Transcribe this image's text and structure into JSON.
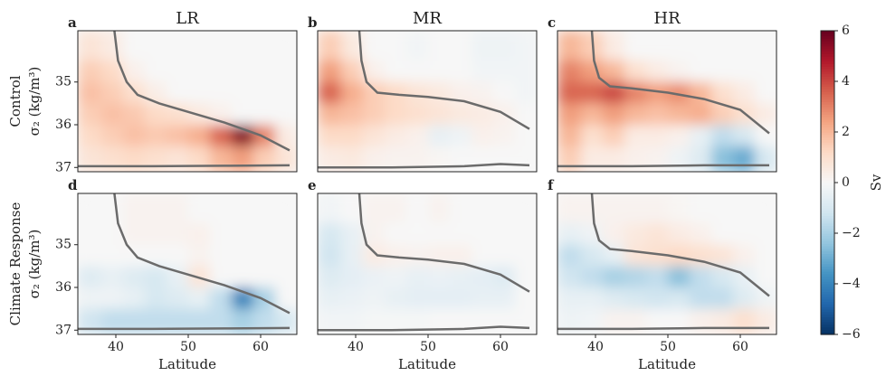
{
  "chart_data": [
    {
      "type": "heatmap",
      "label": "a",
      "title": "LR",
      "ylabel": [
        "Control",
        "σ₂ (kg/m³)"
      ],
      "xlim": [
        34.75,
        65
      ],
      "ylim": [
        33.8,
        37.1
      ],
      "y_inverted": true,
      "yticks": [
        35,
        36,
        37
      ],
      "x_edges": [
        34.75,
        38,
        41,
        44,
        47,
        50,
        53,
        56,
        59,
        62,
        65
      ],
      "y_edges": [
        33.8,
        34.5,
        35,
        35.5,
        36,
        36.5,
        37.1
      ],
      "values": [
        [
          0.8,
          0.5,
          0,
          0,
          0,
          0,
          0,
          0,
          0,
          0
        ],
        [
          1.5,
          1.2,
          0.3,
          0,
          0,
          0,
          0,
          0,
          0,
          0
        ],
        [
          1.8,
          1.5,
          1.0,
          0.4,
          0,
          0,
          0,
          0,
          0,
          0
        ],
        [
          1.5,
          1.8,
          1.6,
          1.2,
          1.0,
          0.6,
          0.3,
          0,
          0,
          0
        ],
        [
          1.2,
          1.5,
          1.8,
          1.6,
          1.8,
          2.2,
          3.5,
          5.5,
          3.0,
          0.5
        ],
        [
          0.8,
          1.0,
          1.2,
          1.0,
          0.8,
          1.2,
          2.0,
          2.5,
          1.5,
          0.8
        ]
      ],
      "lines": [
        {
          "x": [
            39.8,
            40.3,
            41.5,
            43,
            46,
            50,
            55,
            60,
            64
          ],
          "y": [
            33.8,
            34.5,
            35.0,
            35.3,
            35.5,
            35.7,
            35.95,
            36.25,
            36.6
          ]
        },
        {
          "x": [
            34.75,
            45,
            55,
            64
          ],
          "y": [
            36.97,
            36.97,
            36.96,
            36.95
          ]
        }
      ],
      "line_color": "#6b6b6b"
    },
    {
      "type": "heatmap",
      "label": "b",
      "title": "MR",
      "xlim": [
        34.75,
        65
      ],
      "ylim": [
        33.8,
        37.1
      ],
      "y_inverted": true,
      "x_edges": [
        34.75,
        38,
        41,
        44,
        47,
        50,
        53,
        56,
        59,
        62,
        65
      ],
      "y_edges": [
        33.8,
        34.5,
        35,
        35.5,
        36,
        36.5,
        37.1
      ],
      "values": [
        [
          1.5,
          0.6,
          0,
          0,
          -0.2,
          0,
          0,
          -0.3,
          -0.3,
          -0.2
        ],
        [
          2.5,
          1.5,
          0.3,
          0,
          0,
          0,
          0,
          -0.2,
          -0.2,
          -0.2
        ],
        [
          3.5,
          2.2,
          1.5,
          1.2,
          0.8,
          0.6,
          0.3,
          0.2,
          0,
          -0.2
        ],
        [
          2.0,
          1.8,
          1.5,
          1.2,
          1.0,
          0.8,
          0.6,
          0.5,
          0.3,
          0
        ],
        [
          1.2,
          1.2,
          0.8,
          0.5,
          0.3,
          -0.5,
          -0.3,
          0.3,
          0.2,
          0
        ],
        [
          0.5,
          0.6,
          0.3,
          0.2,
          0.2,
          0.1,
          0,
          0,
          0,
          0
        ]
      ],
      "lines": [
        {
          "x": [
            40.5,
            40.8,
            41.5,
            43,
            46,
            50,
            55,
            60,
            64
          ],
          "y": [
            33.8,
            34.5,
            35.0,
            35.25,
            35.3,
            35.35,
            35.45,
            35.7,
            36.1
          ]
        },
        {
          "x": [
            34.75,
            45,
            55,
            60,
            64
          ],
          "y": [
            37.0,
            37.0,
            36.97,
            36.92,
            36.95
          ]
        }
      ],
      "line_color": "#6b6b6b"
    },
    {
      "type": "heatmap",
      "label": "c",
      "title": "HR",
      "xlim": [
        34.75,
        65
      ],
      "ylim": [
        33.8,
        37.1
      ],
      "y_inverted": true,
      "x_edges": [
        34.75,
        38,
        41,
        44,
        47,
        50,
        53,
        56,
        59,
        62,
        65
      ],
      "y_edges": [
        33.8,
        34.5,
        35,
        35.5,
        36,
        36.5,
        37.1
      ],
      "values": [
        [
          2.0,
          1.5,
          0.5,
          0,
          0,
          0,
          0,
          0,
          0,
          0
        ],
        [
          3.0,
          2.5,
          2.0,
          1.0,
          0.5,
          0.2,
          0,
          0,
          0,
          0
        ],
        [
          3.5,
          3.5,
          4.0,
          3.0,
          2.5,
          2.8,
          2.0,
          1.0,
          0.5,
          0
        ],
        [
          2.5,
          2.0,
          2.5,
          2.0,
          1.8,
          2.0,
          2.2,
          1.5,
          1.0,
          0.5
        ],
        [
          2.0,
          1.0,
          1.5,
          0.5,
          0.5,
          0.3,
          -0.5,
          -1.5,
          -1.0,
          0
        ],
        [
          1.5,
          0.5,
          0.5,
          0.3,
          0.2,
          -0.3,
          -0.8,
          -2.5,
          -3.0,
          -1.0
        ]
      ],
      "lines": [
        {
          "x": [
            39.5,
            39.8,
            40.5,
            42,
            45,
            50,
            55,
            60,
            64
          ],
          "y": [
            33.8,
            34.5,
            34.9,
            35.1,
            35.15,
            35.25,
            35.4,
            35.65,
            36.2
          ]
        },
        {
          "x": [
            34.75,
            45,
            55,
            64
          ],
          "y": [
            36.97,
            36.97,
            36.95,
            36.95
          ]
        }
      ],
      "line_color": "#6b6b6b"
    },
    {
      "type": "heatmap",
      "label": "d",
      "ylabel": [
        "Climate Response",
        "σ₂ (kg/m³)"
      ],
      "xlabel": "Latitude",
      "xlim": [
        34.75,
        65
      ],
      "ylim": [
        33.8,
        37.1
      ],
      "y_inverted": true,
      "xticks": [
        40,
        50,
        60
      ],
      "yticks": [
        35,
        36,
        37
      ],
      "x_edges": [
        34.75,
        38,
        41,
        44,
        47,
        50,
        53,
        56,
        59,
        62,
        65
      ],
      "y_edges": [
        33.8,
        34.5,
        35,
        35.5,
        36,
        36.5,
        37.1
      ],
      "values": [
        [
          0,
          0,
          0.2,
          0.2,
          0.2,
          0,
          0,
          0,
          0,
          0
        ],
        [
          0,
          0,
          0.2,
          0.2,
          0.2,
          0.3,
          0,
          0,
          0,
          0
        ],
        [
          0,
          0,
          0,
          0,
          0,
          0.2,
          0,
          0,
          0,
          0
        ],
        [
          -0.8,
          -0.5,
          -0.8,
          -1.0,
          -0.5,
          0.8,
          0,
          0,
          0,
          0
        ],
        [
          -0.3,
          -0.3,
          -0.5,
          -1.0,
          -0.8,
          -0.5,
          -1.5,
          -4.0,
          -2.0,
          0
        ],
        [
          -1.2,
          -1.5,
          -1.5,
          -1.5,
          -1.5,
          -1.5,
          -1.5,
          -2.0,
          -1.5,
          -1.0
        ]
      ],
      "lines": [
        {
          "x": [
            39.8,
            40.3,
            41.5,
            43,
            46,
            50,
            55,
            60,
            64
          ],
          "y": [
            33.8,
            34.5,
            35.0,
            35.3,
            35.5,
            35.7,
            35.95,
            36.25,
            36.6
          ]
        },
        {
          "x": [
            34.75,
            45,
            55,
            64
          ],
          "y": [
            36.97,
            36.97,
            36.96,
            36.95
          ]
        }
      ],
      "line_color": "#6b6b6b"
    },
    {
      "type": "heatmap",
      "label": "e",
      "xlabel": "Latitude",
      "xlim": [
        34.75,
        65
      ],
      "ylim": [
        33.8,
        37.1
      ],
      "y_inverted": true,
      "xticks": [
        40,
        50,
        60
      ],
      "x_edges": [
        34.75,
        38,
        41,
        44,
        47,
        50,
        53,
        56,
        59,
        62,
        65
      ],
      "y_edges": [
        33.8,
        34.5,
        35,
        35.5,
        36,
        36.5,
        37.1
      ],
      "values": [
        [
          -0.2,
          0,
          0.2,
          0.2,
          0,
          0.2,
          0,
          0,
          0,
          0
        ],
        [
          -1.0,
          -0.5,
          0.2,
          0,
          0,
          0,
          0,
          0,
          0,
          0
        ],
        [
          -1.2,
          -0.5,
          0.5,
          0.3,
          0.2,
          0.3,
          0.3,
          0,
          0,
          0
        ],
        [
          -0.8,
          -0.6,
          -0.4,
          -0.3,
          -0.5,
          -0.4,
          -0.5,
          -0.6,
          -0.8,
          0
        ],
        [
          -0.5,
          -0.4,
          -0.3,
          -0.5,
          -0.6,
          -0.6,
          -0.6,
          -0.5,
          -0.5,
          0
        ],
        [
          -0.2,
          -0.2,
          -0.1,
          -0.1,
          -0.1,
          0,
          0,
          0,
          0,
          0
        ]
      ],
      "lines": [
        {
          "x": [
            40.5,
            40.8,
            41.5,
            43,
            46,
            50,
            55,
            60,
            64
          ],
          "y": [
            33.8,
            34.5,
            35.0,
            35.25,
            35.3,
            35.35,
            35.45,
            35.7,
            36.1
          ]
        },
        {
          "x": [
            34.75,
            45,
            55,
            60,
            64
          ],
          "y": [
            37.0,
            37.0,
            36.97,
            36.92,
            36.95
          ]
        }
      ],
      "line_color": "#6b6b6b"
    },
    {
      "type": "heatmap",
      "label": "f",
      "xlabel": "Latitude",
      "xlim": [
        34.75,
        65
      ],
      "ylim": [
        33.8,
        37.1
      ],
      "y_inverted": true,
      "xticks": [
        40,
        50,
        60
      ],
      "x_edges": [
        34.75,
        38,
        41,
        44,
        47,
        50,
        53,
        56,
        59,
        62,
        65
      ],
      "y_edges": [
        33.8,
        34.5,
        35,
        35.5,
        36,
        36.5,
        37.1
      ],
      "values": [
        [
          0.2,
          0.2,
          0.2,
          0.2,
          0.2,
          0.1,
          0,
          0,
          0,
          0
        ],
        [
          -0.5,
          -0.3,
          0.3,
          0.6,
          0.8,
          0.5,
          0.3,
          0,
          0,
          0
        ],
        [
          -1.5,
          -1.0,
          -0.5,
          0.8,
          1.0,
          1.2,
          1.0,
          0.8,
          0.3,
          0
        ],
        [
          -1.2,
          -1.5,
          -2.0,
          -1.8,
          -1.5,
          -2.5,
          -1.5,
          -1.0,
          -0.5,
          0
        ],
        [
          -0.5,
          -0.5,
          -0.8,
          -1.0,
          -1.2,
          -1.0,
          -1.5,
          -1.5,
          -0.8,
          -0.3
        ],
        [
          -0.3,
          -0.2,
          0.2,
          0.2,
          0,
          0,
          0.3,
          0.5,
          1.0,
          0.5
        ]
      ],
      "lines": [
        {
          "x": [
            39.5,
            39.8,
            40.5,
            42,
            45,
            50,
            55,
            60,
            64
          ],
          "y": [
            33.8,
            34.5,
            34.9,
            35.1,
            35.15,
            35.25,
            35.4,
            35.65,
            36.2
          ]
        },
        {
          "x": [
            34.75,
            45,
            55,
            64
          ],
          "y": [
            36.97,
            36.97,
            36.95,
            36.95
          ]
        }
      ],
      "line_color": "#6b6b6b"
    },
    {
      "type": "colorbar",
      "label": "Sv",
      "colormap": "RdBu_r",
      "clim": [
        -6,
        6
      ],
      "ticks": [
        {
          "value": -6,
          "label": "−6"
        },
        {
          "value": -4,
          "label": "−4"
        },
        {
          "value": -2,
          "label": "−2"
        },
        0,
        2,
        4,
        6
      ]
    }
  ]
}
